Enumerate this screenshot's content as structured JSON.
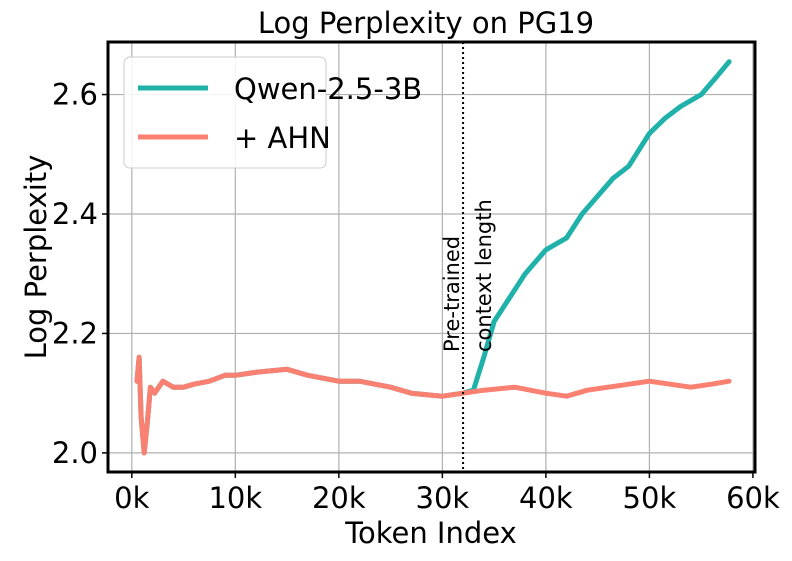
{
  "chart_data": {
    "type": "line",
    "title": "Log Perplexity on PG19",
    "xlabel": "Token Index",
    "ylabel": "Log Perplexity",
    "xlim": [
      -2300,
      60200
    ],
    "ylim": [
      1.968,
      2.688
    ],
    "xticks": [
      0,
      10000,
      20000,
      30000,
      40000,
      50000,
      60000
    ],
    "xtick_labels": [
      "0k",
      "10k",
      "20k",
      "30k",
      "40k",
      "50k",
      "60k"
    ],
    "yticks": [
      2.0,
      2.2,
      2.4,
      2.6
    ],
    "ytick_labels": [
      "2.0",
      "2.2",
      "2.4",
      "2.6"
    ],
    "grid": true,
    "legend": "top-left",
    "annotation": {
      "x": 32000,
      "text_line1": "Pre-trained",
      "text_line2": "context length"
    },
    "series": [
      {
        "name": "Qwen-2.5-3B",
        "color": "#20b2aa",
        "x": [
          500,
          700,
          900,
          1200,
          1500,
          1800,
          2200,
          3000,
          4000,
          5000,
          6000,
          7500,
          9000,
          10000,
          12000,
          15000,
          17000,
          20000,
          22000,
          25000,
          27000,
          30000,
          32000,
          33000,
          34000,
          35000,
          36500,
          38000,
          40000,
          42000,
          43500,
          45000,
          46500,
          48000,
          50000,
          51500,
          53000,
          55000,
          56500,
          57700
        ],
        "y": [
          2.12,
          2.16,
          2.06,
          2.0,
          2.05,
          2.11,
          2.1,
          2.12,
          2.11,
          2.11,
          2.115,
          2.12,
          2.13,
          2.13,
          2.135,
          2.14,
          2.13,
          2.12,
          2.12,
          2.11,
          2.1,
          2.095,
          2.1,
          2.105,
          2.16,
          2.22,
          2.26,
          2.3,
          2.34,
          2.36,
          2.4,
          2.43,
          2.46,
          2.48,
          2.535,
          2.56,
          2.58,
          2.6,
          2.63,
          2.655
        ]
      },
      {
        "name": "+ AHN",
        "color": "#fa8072",
        "x": [
          500,
          700,
          900,
          1200,
          1500,
          1800,
          2200,
          3000,
          4000,
          5000,
          6000,
          7500,
          9000,
          10000,
          12000,
          15000,
          17000,
          20000,
          22000,
          25000,
          27000,
          30000,
          32000,
          34000,
          37000,
          40000,
          42000,
          44000,
          46000,
          48000,
          50000,
          52000,
          54000,
          56000,
          57700
        ],
        "y": [
          2.12,
          2.16,
          2.06,
          2.0,
          2.05,
          2.11,
          2.1,
          2.12,
          2.11,
          2.11,
          2.115,
          2.12,
          2.13,
          2.13,
          2.135,
          2.14,
          2.13,
          2.12,
          2.12,
          2.11,
          2.1,
          2.095,
          2.1,
          2.105,
          2.11,
          2.1,
          2.095,
          2.105,
          2.11,
          2.115,
          2.12,
          2.115,
          2.11,
          2.115,
          2.12
        ]
      }
    ]
  }
}
